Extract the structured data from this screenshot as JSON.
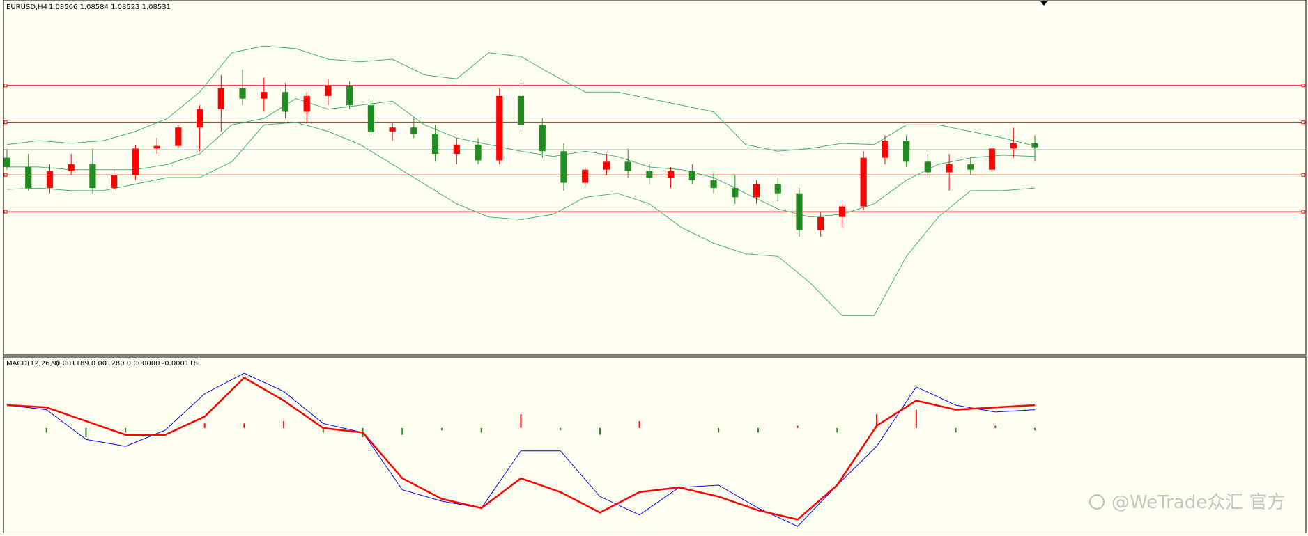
{
  "symbol_label": "EURUSD,H4",
  "ohlc_values": "1.08566 1.08584 1.08523 1.08531",
  "indicator_label": "MACD(12,26,9)",
  "indicator_values": "0.001189 0.001280 0.000000 -0.000118",
  "watermark": "@WeTrade众汇 官方",
  "colors": {
    "background": "#fffff2",
    "bull_candle": "#ff0000",
    "bear_candle": "#228b22",
    "bollinger": "#3cb371",
    "level_lines": "#ff0000",
    "current_price_line": "#000000",
    "macd_line": "#0000ff",
    "signal_line": "#ff0000",
    "hist_positive": "#ff0000",
    "hist_negative": "#228b22"
  },
  "chart_data": [
    {
      "type": "candlestick",
      "series_note_source": "main",
      "ylim": [
        1.0725,
        1.0995
      ],
      "horizontal_levels": [
        1.093,
        1.0902,
        1.0862,
        1.0834
      ],
      "current_price": 1.0881,
      "bollinger_upper": [
        1.0885,
        1.0888,
        1.0886,
        1.0888,
        1.0895,
        1.0905,
        1.0925,
        1.0955,
        1.096,
        1.0958,
        1.095,
        1.0948,
        1.095,
        1.0938,
        1.0935,
        1.0955,
        1.0952,
        1.0938,
        1.0925,
        1.0925,
        1.092,
        1.0915,
        1.091,
        1.0885,
        1.088,
        1.0882,
        1.0886,
        1.0885,
        1.09,
        1.09,
        1.0895,
        1.089,
        1.0884
      ],
      "bollinger_mid": [
        1.0868,
        1.0868,
        1.0866,
        1.0866,
        1.0866,
        1.087,
        1.0878,
        1.09,
        1.0905,
        1.092,
        1.0912,
        1.0915,
        1.0918,
        1.09,
        1.089,
        1.0885,
        1.088,
        1.0876,
        1.088,
        1.0876,
        1.0868,
        1.0866,
        1.086,
        1.0848,
        1.0836,
        1.083,
        1.0832,
        1.084,
        1.0858,
        1.087,
        1.0875,
        1.0877,
        1.0876
      ],
      "bollinger_lower": [
        1.0851,
        1.0852,
        1.085,
        1.085,
        1.0855,
        1.086,
        1.086,
        1.0872,
        1.09,
        1.0902,
        1.0895,
        1.0885,
        1.087,
        1.0855,
        1.084,
        1.083,
        1.0828,
        1.0832,
        1.0845,
        1.0848,
        1.084,
        1.0822,
        1.081,
        1.0802,
        1.08,
        1.078,
        1.0755,
        1.0755,
        1.08,
        1.083,
        1.085,
        1.085,
        1.0852
      ],
      "candles": [
        [
          1.0875,
          1.0882,
          1.0866,
          1.0868
        ],
        [
          1.0868,
          1.0878,
          1.085,
          1.0852
        ],
        [
          1.0852,
          1.087,
          1.0848,
          1.0865
        ],
        [
          1.0865,
          1.0878,
          1.0862,
          1.087
        ],
        [
          1.087,
          1.0882,
          1.0848,
          1.0852
        ],
        [
          1.0852,
          1.0866,
          1.085,
          1.0862
        ],
        [
          1.0862,
          1.0885,
          1.0858,
          1.0882
        ],
        [
          1.0882,
          1.089,
          1.0878,
          1.0884
        ],
        [
          1.0884,
          1.09,
          1.0882,
          1.0898
        ],
        [
          1.0898,
          1.0915,
          1.088,
          1.0912
        ],
        [
          1.0912,
          1.0938,
          1.0895,
          1.0928
        ],
        [
          1.0928,
          1.0942,
          1.0915,
          1.092
        ],
        [
          1.092,
          1.0936,
          1.091,
          1.0925
        ],
        [
          1.0925,
          1.0932,
          1.0905,
          1.091
        ],
        [
          1.091,
          1.0925,
          1.0902,
          1.0922
        ],
        [
          1.0922,
          1.0935,
          1.0915,
          1.093
        ],
        [
          1.093,
          1.0933,
          1.0912,
          1.0915
        ],
        [
          1.0915,
          1.092,
          1.0892,
          1.0895
        ],
        [
          1.0895,
          1.0902,
          1.0888,
          1.0898
        ],
        [
          1.0898,
          1.0905,
          1.089,
          1.0893
        ],
        [
          1.0893,
          1.09,
          1.0872,
          1.0878
        ],
        [
          1.0878,
          1.089,
          1.087,
          1.0885
        ],
        [
          1.0885,
          1.089,
          1.087,
          1.0873
        ],
        [
          1.0873,
          1.0928,
          1.087,
          1.0922
        ],
        [
          1.0922,
          1.0932,
          1.0895,
          1.09
        ],
        [
          1.09,
          1.0905,
          1.0875,
          1.088
        ],
        [
          1.088,
          1.0886,
          1.085,
          1.0856
        ],
        [
          1.0856,
          1.0868,
          1.0852,
          1.0866
        ],
        [
          1.0866,
          1.0878,
          1.0862,
          1.0872
        ],
        [
          1.0872,
          1.0882,
          1.086,
          1.0865
        ],
        [
          1.0865,
          1.087,
          1.0855,
          1.086
        ],
        [
          1.086,
          1.0868,
          1.0852,
          1.0865
        ],
        [
          1.0865,
          1.087,
          1.0855,
          1.0858
        ],
        [
          1.0858,
          1.0864,
          1.0848,
          1.0852
        ],
        [
          1.0852,
          1.0862,
          1.084,
          1.0845
        ],
        [
          1.0845,
          1.0858,
          1.084,
          1.0855
        ],
        [
          1.0855,
          1.086,
          1.0842,
          1.0848
        ],
        [
          1.0848,
          1.0852,
          1.0815,
          1.082
        ],
        [
          1.082,
          1.0834,
          1.0815,
          1.083
        ],
        [
          1.083,
          1.084,
          1.0822,
          1.0838
        ],
        [
          1.0838,
          1.088,
          1.0835,
          1.0875
        ],
        [
          1.0875,
          1.0892,
          1.087,
          1.0888
        ],
        [
          1.0888,
          1.0892,
          1.0868,
          1.0872
        ],
        [
          1.0872,
          1.0878,
          1.086,
          1.0864
        ],
        [
          1.0864,
          1.0878,
          1.085,
          1.087
        ],
        [
          1.087,
          1.0875,
          1.0862,
          1.0866
        ],
        [
          1.0866,
          1.0885,
          1.0864,
          1.0882
        ],
        [
          1.0882,
          1.0898,
          1.0875,
          1.0886
        ],
        [
          1.0886,
          1.0892,
          1.0872,
          1.0883
        ]
      ]
    },
    {
      "type": "line",
      "series_note_source": "macd",
      "ylim": [
        -0.0046,
        0.0031
      ],
      "macd_line": [
        0.001,
        0.0008,
        -0.0005,
        -0.0008,
        -0.0001,
        0.0015,
        0.0024,
        0.0016,
        0.0002,
        -0.0002,
        -0.0027,
        -0.0032,
        -0.0035,
        -0.001,
        -0.001,
        -0.003,
        -0.0038,
        -0.0026,
        -0.0025,
        -0.0035,
        -0.0043,
        -0.0025,
        -0.0008,
        0.0018,
        0.001,
        0.0007,
        0.0008
      ],
      "signal_line": [
        0.001,
        0.0009,
        0.0003,
        -0.0003,
        -0.0003,
        0.0005,
        0.0022,
        0.0012,
        0.0,
        -0.0002,
        -0.0022,
        -0.0031,
        -0.0035,
        -0.0022,
        -0.0028,
        -0.0037,
        -0.0028,
        -0.0026,
        -0.003,
        -0.0036,
        -0.004,
        -0.0025,
        0.0001,
        0.0012,
        0.0008,
        0.0009,
        0.001
      ],
      "histogram": [
        0.0,
        -0.0002,
        -0.0004,
        -0.0002,
        0.0,
        0.0002,
        0.0002,
        0.0003,
        -0.0002,
        -0.0004,
        -0.0003,
        -0.0001,
        -0.0002,
        0.0006,
        -0.0001,
        -0.0003,
        0.0003,
        0.0,
        -0.0002,
        -0.0002,
        0.0001,
        -0.0002,
        0.0006,
        0.0008,
        -0.0002,
        0.0001,
        -0.0001
      ]
    }
  ]
}
